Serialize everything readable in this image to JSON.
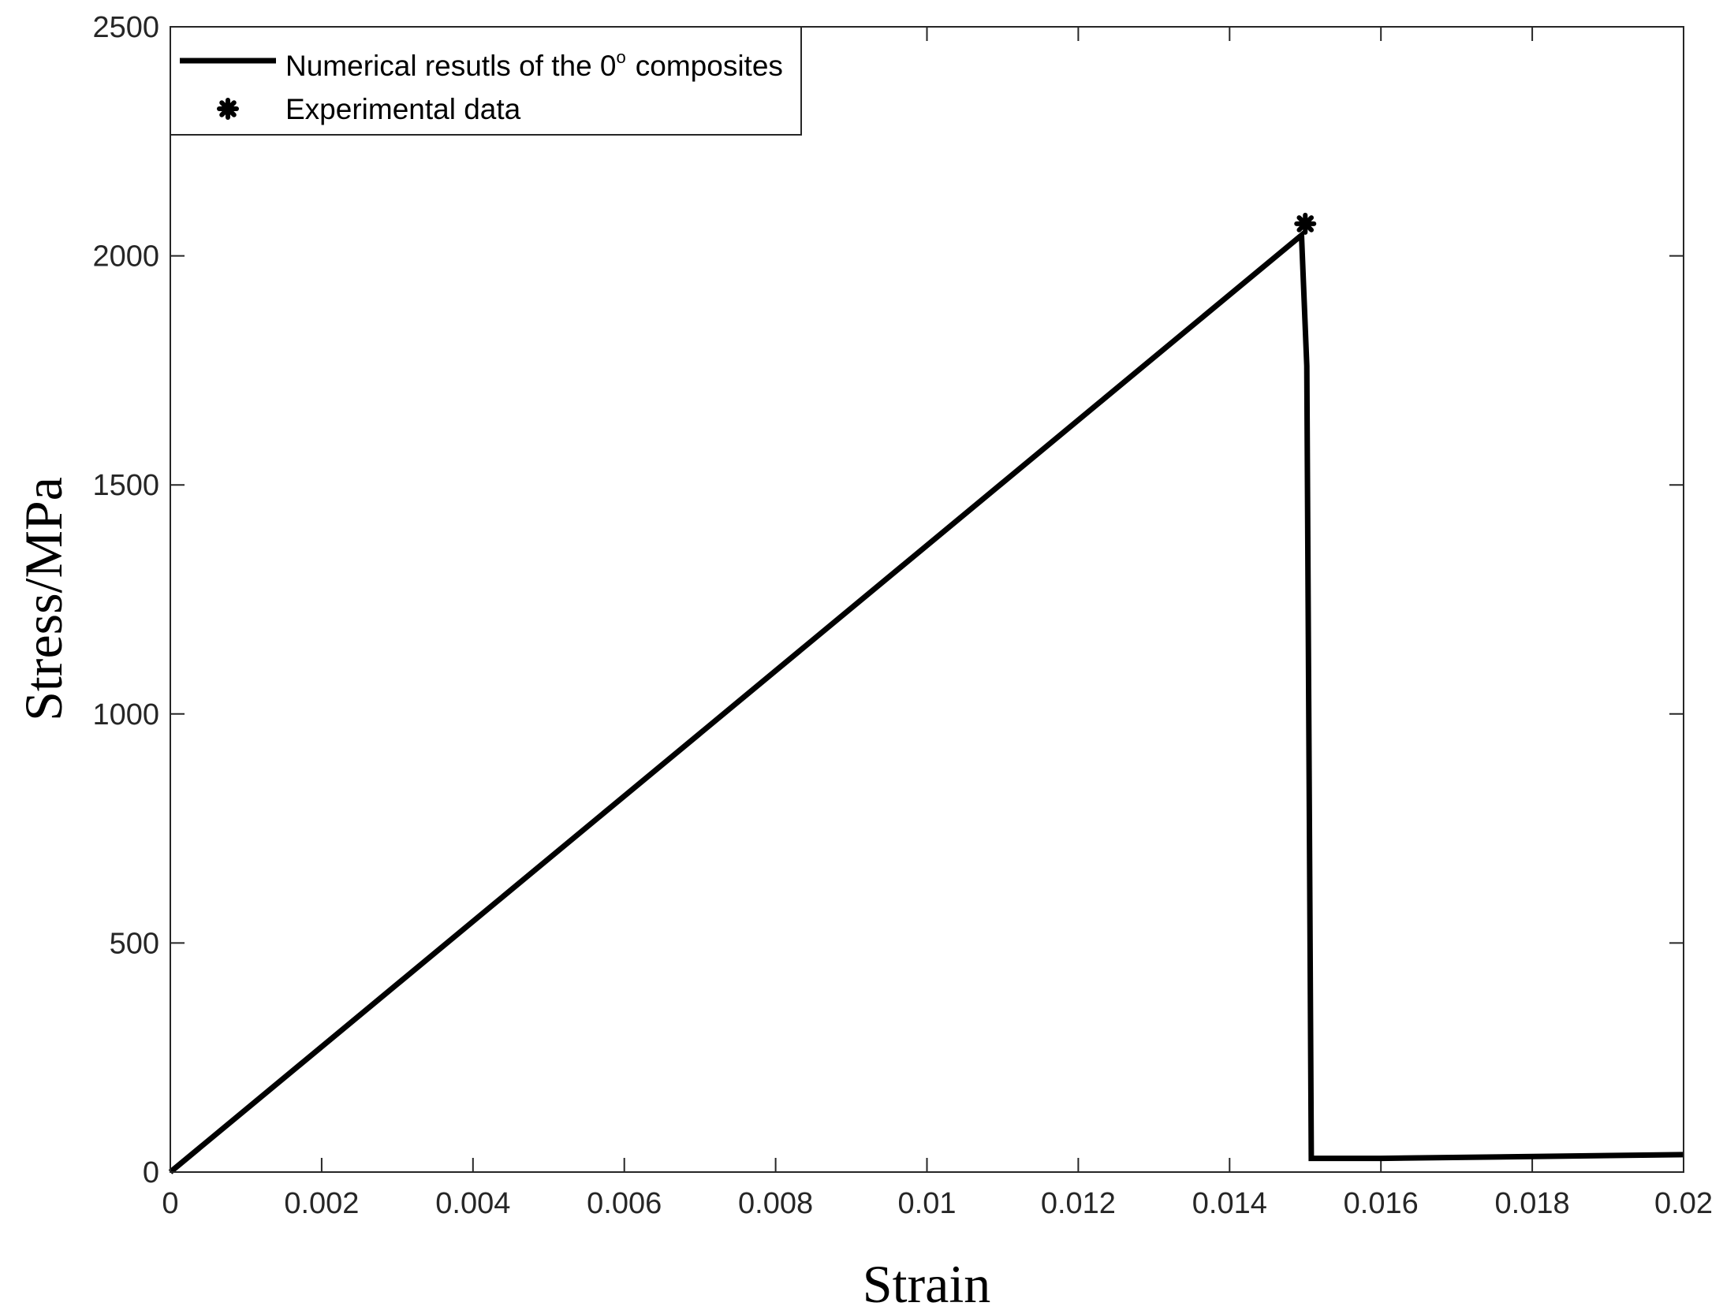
{
  "chart_data": {
    "type": "line",
    "title": "",
    "xlabel": "Strain",
    "ylabel": "Stress/MPa",
    "xlim": [
      0,
      0.02
    ],
    "ylim": [
      0,
      2500
    ],
    "x_ticks": [
      0,
      0.002,
      0.004,
      0.006,
      0.008,
      0.01,
      0.012,
      0.014,
      0.016,
      0.018,
      0.02
    ],
    "x_tick_labels": [
      "0",
      "0.002",
      "0.004",
      "0.006",
      "0.008",
      "0.01",
      "0.012",
      "0.014",
      "0.016",
      "0.018",
      "0.02"
    ],
    "y_ticks": [
      0,
      500,
      1000,
      1500,
      2000,
      2500
    ],
    "y_tick_labels": [
      "0",
      "500",
      "1000",
      "1500",
      "2000",
      "2500"
    ],
    "grid": false,
    "legend_position": "top-left",
    "series": [
      {
        "name": "Numerical resutls of the 0",
        "name_superscript": "o",
        "name_suffix": "composites",
        "marker": "line",
        "color": "#000000",
        "points": [
          [
            0,
            0
          ],
          [
            0.01495,
            2045
          ],
          [
            0.01502,
            1760
          ],
          [
            0.01508,
            30
          ],
          [
            0.016,
            30
          ],
          [
            0.02,
            38
          ]
        ]
      },
      {
        "name": "Experimental data",
        "marker": "asterisk",
        "color": "#000000",
        "points": [
          [
            0.015,
            2070
          ]
        ]
      }
    ]
  }
}
